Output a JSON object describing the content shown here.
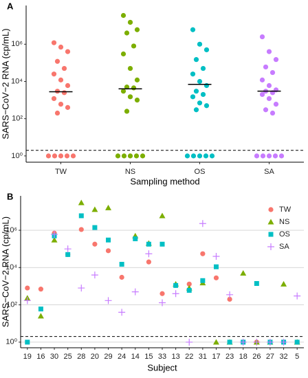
{
  "chart_data": [
    {
      "type": "strip",
      "panel_label": "A",
      "y_label": "SARS−CoV−2 RNA (cp/mL)",
      "x_label": "Sampling method",
      "categories": [
        "TW",
        "NS",
        "OS",
        "SA"
      ],
      "colors": [
        "#F8766D",
        "#7CAE00",
        "#00BFC4",
        "#C77CFF"
      ],
      "values": [
        [
          1200000,
          700000,
          400000,
          120000,
          50000,
          25000,
          12000,
          6000,
          3000,
          2500,
          1200,
          600,
          400,
          200,
          1,
          1,
          1,
          1,
          1
        ],
        [
          35000000,
          15000000,
          6000000,
          4000000,
          800000,
          300000,
          50000,
          12000,
          5000,
          4500,
          3000,
          1500,
          1000,
          250,
          1,
          1,
          1,
          1,
          1
        ],
        [
          6000000,
          1000000,
          500000,
          150000,
          50000,
          25000,
          10000,
          6000,
          3000,
          2000,
          1500,
          700,
          500,
          300,
          1,
          1,
          1,
          1,
          1
        ],
        [
          2500000,
          400000,
          150000,
          60000,
          30000,
          12000,
          6000,
          3500,
          3000,
          2500,
          2000,
          1200,
          600,
          300,
          200,
          1,
          1,
          1,
          1,
          1
        ]
      ],
      "medians": [
        2800,
        4000,
        7000,
        3000
      ],
      "hline": 2,
      "log_y": true,
      "ylim": [
        0.46,
        120000000
      ],
      "yticks": [
        {
          "value": 1,
          "label": "10⁰"
        },
        {
          "value": 100,
          "label": "10²"
        },
        {
          "value": 10000,
          "label": "10⁴"
        },
        {
          "value": 1000000,
          "label": "10⁶"
        }
      ]
    },
    {
      "type": "scatter",
      "panel_label": "B",
      "y_label": "SARS−CoV−2 RNA (cp/mL)",
      "x_label": "Subject",
      "categories": [
        "19",
        "16",
        "30",
        "25",
        "28",
        "20",
        "29",
        "24",
        "14",
        "15",
        "33",
        "13",
        "22",
        "31",
        "17",
        "23",
        "18",
        "26",
        "27",
        "32",
        "5"
      ],
      "series": [
        {
          "name": "TW",
          "color": "#F8766D",
          "marker": "circle",
          "values": [
            800,
            700,
            700000,
            50000,
            1100000,
            180000,
            80000,
            3000,
            400000,
            20000,
            400,
            1100,
            1300,
            55000,
            2800,
            200,
            1,
            1,
            1,
            1,
            1
          ]
        },
        {
          "name": "NS",
          "color": "#7CAE00",
          "marker": "triangle",
          "values": [
            230,
            25,
            300000,
            null,
            30000000,
            13000000,
            16000000,
            null,
            500000,
            200000,
            6000000,
            1300,
            800,
            1500,
            1,
            1,
            5000,
            1,
            1,
            1300,
            1
          ]
        },
        {
          "name": "OS",
          "color": "#00BFC4",
          "marker": "square",
          "values": [
            1,
            60,
            500000,
            50000,
            6000000,
            1400000,
            300000,
            15000,
            350000,
            180000,
            180000,
            1100,
            600,
            2000,
            11000,
            1,
            1,
            1400,
            1,
            1,
            1
          ]
        },
        {
          "name": "SA",
          "color": "#C77CFF",
          "marker": "plus",
          "values": [
            170,
            null,
            600000,
            100000,
            800,
            4000,
            170,
            40,
            500,
            55000,
            130,
            400,
            1,
            2300000,
            40000,
            350,
            1,
            1,
            1,
            1,
            300
          ]
        }
      ],
      "hline": 2,
      "log_y": true,
      "grid": true,
      "legend": "top-right",
      "ylim": [
        0.5,
        70000000
      ],
      "yticks": [
        {
          "value": 1,
          "label": "10⁰"
        },
        {
          "value": 100,
          "label": "10²"
        },
        {
          "value": 10000,
          "label": "10⁴"
        },
        {
          "value": 1000000,
          "label": "10⁶"
        }
      ]
    }
  ]
}
